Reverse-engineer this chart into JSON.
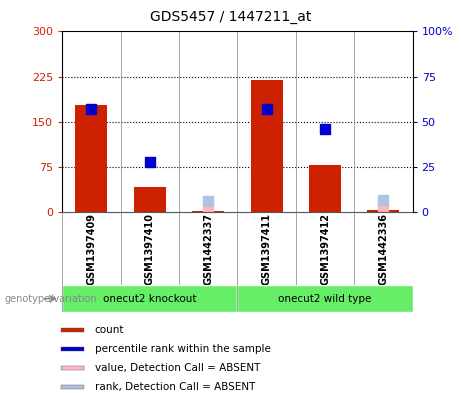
{
  "title": "GDS5457 / 1447211_at",
  "samples": [
    "GSM1397409",
    "GSM1397410",
    "GSM1442337",
    "GSM1397411",
    "GSM1397412",
    "GSM1442336"
  ],
  "count_values": [
    178,
    42,
    2,
    220,
    78,
    3
  ],
  "rank_values": [
    57,
    28,
    null,
    57,
    46,
    null
  ],
  "absent_count_values": [
    null,
    null,
    6,
    null,
    null,
    6
  ],
  "absent_rank_values": [
    null,
    null,
    6,
    null,
    null,
    7
  ],
  "groups": [
    {
      "label": "onecut2 knockout",
      "start": 0,
      "end": 3,
      "color": "#66EE66"
    },
    {
      "label": "onecut2 wild type",
      "start": 3,
      "end": 6,
      "color": "#66EE66"
    }
  ],
  "ylim_left": [
    0,
    300
  ],
  "ylim_right": [
    0,
    100
  ],
  "yticks_left": [
    0,
    75,
    150,
    225,
    300
  ],
  "yticks_right": [
    0,
    25,
    50,
    75,
    100
  ],
  "ytick_labels_left": [
    "0",
    "75",
    "150",
    "225",
    "300"
  ],
  "ytick_labels_right": [
    "0",
    "25",
    "50",
    "75",
    "100%"
  ],
  "hlines": [
    75,
    150,
    225
  ],
  "bar_color": "#CC2200",
  "rank_color": "#0000CC",
  "absent_count_color": "#FFB6C1",
  "absent_rank_color": "#B0C4DE",
  "bar_width": 0.55,
  "rank_marker_size": 55,
  "absent_marker_size": 45,
  "left_tick_color": "#CC2200",
  "right_tick_color": "#0000CC",
  "background_color": "#FFFFFF",
  "sample_box_color": "#C8C8C8",
  "legend_items": [
    {
      "label": "count",
      "color": "#CC2200"
    },
    {
      "label": "percentile rank within the sample",
      "color": "#0000CC"
    },
    {
      "label": "value, Detection Call = ABSENT",
      "color": "#FFB6C1"
    },
    {
      "label": "rank, Detection Call = ABSENT",
      "color": "#B0C4DE"
    }
  ]
}
